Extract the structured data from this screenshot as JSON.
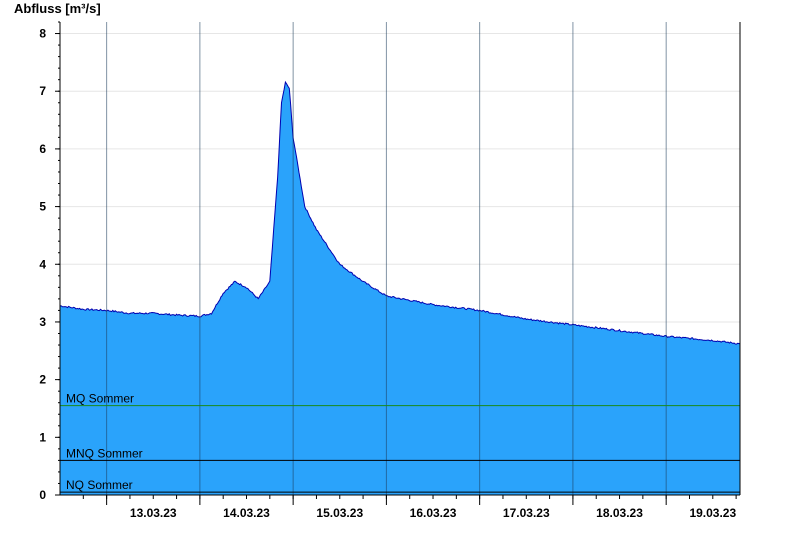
{
  "chart_data": {
    "type": "area",
    "ylabel": "Abfluss [m³/s]",
    "ylim": [
      0,
      8.2
    ],
    "yticks": [
      0,
      1,
      2,
      3,
      4,
      5,
      6,
      7,
      8
    ],
    "xlim": [
      "12.03.23 12:00",
      "19.03.23 19:00"
    ],
    "x_tick_labels": [
      "13.03.23",
      "14.03.23",
      "15.03.23",
      "16.03.23",
      "17.03.23",
      "18.03.23",
      "19.03.23"
    ],
    "grid": true,
    "fill_color": "#2aa3fb",
    "line_color": "#0000b0",
    "series": [
      {
        "x": [
          "12.03.23 12:00",
          "12.03.23 18:00",
          "13.03.23 00:00",
          "13.03.23 06:00",
          "13.03.23 12:00",
          "13.03.23 18:00",
          "14.03.23 00:00",
          "14.03.23 03:00",
          "14.03.23 06:00",
          "14.03.23 09:00",
          "14.03.23 12:00",
          "14.03.23 15:00",
          "14.03.23 18:00",
          "14.03.23 20:00",
          "14.03.23 21:00",
          "14.03.23 22:00",
          "14.03.23 23:00",
          "15.03.23 00:00",
          "15.03.23 03:00",
          "15.03.23 06:00",
          "15.03.23 09:00",
          "15.03.23 12:00",
          "15.03.23 18:00",
          "16.03.23 00:00",
          "16.03.23 12:00",
          "17.03.23 00:00",
          "17.03.23 12:00",
          "18.03.23 00:00",
          "18.03.23 12:00",
          "19.03.23 00:00",
          "19.03.23 12:00",
          "19.03.23 19:00"
        ],
        "values": [
          3.28,
          3.22,
          3.2,
          3.15,
          3.15,
          3.12,
          3.1,
          3.15,
          3.5,
          3.7,
          3.6,
          3.4,
          3.7,
          5.5,
          6.8,
          7.15,
          7.05,
          6.2,
          5.0,
          4.6,
          4.3,
          4.0,
          3.7,
          3.45,
          3.3,
          3.2,
          3.05,
          2.95,
          2.85,
          2.75,
          2.68,
          2.62
        ]
      }
    ],
    "reference_lines": [
      {
        "label": "MQ Sommer",
        "value": 1.55,
        "color": "#1a8a1a"
      },
      {
        "label": "MNQ Sommer",
        "value": 0.6,
        "color": "#000000"
      },
      {
        "label": "NQ Sommer",
        "value": 0.05,
        "color": "#000000"
      }
    ]
  }
}
